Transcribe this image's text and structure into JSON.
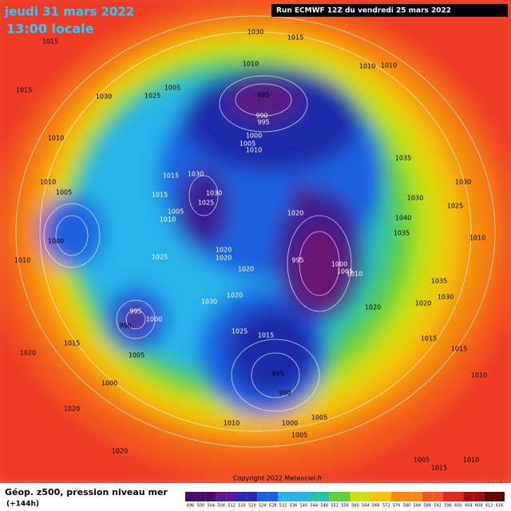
{
  "header": {
    "date": "jeudi 31 mars 2022",
    "time": "13:00 locale",
    "run": "Run ECMWF 12Z du vendredi 25 mars 2022"
  },
  "footer": {
    "title": "Géop. z500, pression niveau mer",
    "lead": "(+144h)",
    "copyright": "Copyright 2022 Meteociel.fr"
  },
  "colorbar": {
    "labels": [
      496,
      500,
      504,
      508,
      512,
      516,
      520,
      524,
      528,
      532,
      536,
      540,
      544,
      548,
      552,
      556,
      560,
      564,
      568,
      572,
      576,
      580,
      584,
      588,
      592,
      596,
      600,
      604,
      608,
      612,
      616
    ]
  },
  "isobar_labels": [
    1015,
    1030,
    1015,
    1010,
    1010,
    1010,
    1015,
    1030,
    1025,
    1005,
    985,
    990,
    995,
    1000,
    1005,
    1010,
    1035,
    1030,
    1025,
    1010,
    1010,
    1005,
    1015,
    1030,
    1030,
    1025,
    1015,
    1005,
    1010,
    1020,
    1030,
    1040,
    1035,
    1010,
    1000,
    1025,
    1020,
    1020,
    1020,
    1010,
    995,
    1000,
    1005,
    1010,
    1035,
    1030,
    1020,
    1020,
    1030,
    1020,
    995,
    990,
    1000,
    1025,
    1015,
    1015,
    1005,
    1020,
    1015,
    1015,
    995,
    990,
    1000,
    1010,
    1020,
    1020,
    1010,
    1000,
    1005,
    1005,
    1005,
    1010,
    1015,
    1005
  ]
}
